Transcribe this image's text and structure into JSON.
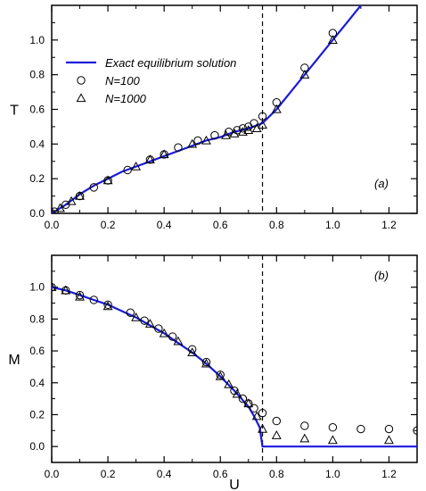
{
  "chart_data": [
    {
      "panel": "a",
      "type": "line+scatter",
      "tag": "(a)",
      "ylabel": "T",
      "xlabel": "",
      "xlim": [
        0,
        1.3
      ],
      "ylim": [
        0,
        1.2
      ],
      "xticks": [
        0.0,
        0.2,
        0.4,
        0.6,
        0.8,
        1.0,
        1.2
      ],
      "xtick_labels": [
        "0.0",
        "0.2",
        "0.4",
        "0.6",
        "0.8",
        "1.0",
        "1.2"
      ],
      "yticks": [
        0.0,
        0.2,
        0.4,
        0.6,
        0.8,
        1.0
      ],
      "ytick_labels": [
        "0.0",
        "0.2",
        "0.4",
        "0.6",
        "0.8",
        "1.0"
      ],
      "vline_x": 0.75,
      "legend": {
        "position": "upper-left",
        "entries": [
          {
            "label": "Exact equilibrium  solution",
            "marker": "line",
            "color": "#1a1adc"
          },
          {
            "label": "N=100",
            "marker": "circle",
            "color": "#000000"
          },
          {
            "label": "N=1000",
            "marker": "triangle",
            "color": "#000000"
          }
        ]
      },
      "series": [
        {
          "name": "Exact equilibrium  solution",
          "kind": "line",
          "color": "#1a1adc",
          "x": [
            0.0,
            0.05,
            0.1,
            0.15,
            0.2,
            0.25,
            0.3,
            0.35,
            0.4,
            0.45,
            0.5,
            0.55,
            0.6,
            0.65,
            0.7,
            0.75,
            0.8,
            0.85,
            0.9,
            0.95,
            1.0,
            1.05,
            1.1,
            1.13
          ],
          "values": [
            0.0,
            0.05,
            0.11,
            0.16,
            0.2,
            0.24,
            0.27,
            0.3,
            0.33,
            0.36,
            0.39,
            0.42,
            0.44,
            0.47,
            0.49,
            0.52,
            0.6,
            0.7,
            0.8,
            0.9,
            1.0,
            1.1,
            1.2,
            1.26
          ]
        },
        {
          "name": "N=100",
          "kind": "scatter",
          "marker": "circle",
          "x": [
            0.0,
            0.01,
            0.05,
            0.1,
            0.15,
            0.2,
            0.27,
            0.35,
            0.4,
            0.45,
            0.52,
            0.58,
            0.63,
            0.66,
            0.68,
            0.7,
            0.72,
            0.75,
            0.8,
            0.9,
            1.0
          ],
          "values": [
            0.0,
            0.01,
            0.05,
            0.1,
            0.15,
            0.19,
            0.25,
            0.31,
            0.34,
            0.38,
            0.42,
            0.45,
            0.47,
            0.48,
            0.49,
            0.5,
            0.52,
            0.56,
            0.64,
            0.84,
            1.04
          ]
        },
        {
          "name": "N=1000",
          "kind": "scatter",
          "marker": "triangle",
          "x": [
            0.0,
            0.03,
            0.07,
            0.1,
            0.2,
            0.3,
            0.35,
            0.4,
            0.5,
            0.55,
            0.62,
            0.65,
            0.68,
            0.7,
            0.73,
            0.75,
            0.8,
            0.9,
            1.0
          ],
          "values": [
            0.0,
            0.03,
            0.07,
            0.1,
            0.19,
            0.27,
            0.31,
            0.34,
            0.4,
            0.42,
            0.45,
            0.46,
            0.47,
            0.48,
            0.49,
            0.51,
            0.6,
            0.8,
            1.0
          ]
        }
      ]
    },
    {
      "panel": "b",
      "type": "line+scatter",
      "tag": "(b)",
      "ylabel": "M",
      "xlabel": "U",
      "xlim": [
        0,
        1.3
      ],
      "ylim": [
        -0.1,
        1.2
      ],
      "xticks": [
        0.0,
        0.2,
        0.4,
        0.6,
        0.8,
        1.0,
        1.2
      ],
      "xtick_labels": [
        "0.0",
        "0.2",
        "0.4",
        "0.6",
        "0.8",
        "1.0",
        "1.2"
      ],
      "yticks": [
        0.0,
        0.2,
        0.4,
        0.6,
        0.8,
        1.0
      ],
      "ytick_labels": [
        "0.0",
        "0.2",
        "0.4",
        "0.6",
        "0.8",
        "1.0"
      ],
      "vline_x": 0.75,
      "series": [
        {
          "name": "Exact equilibrium  solution",
          "kind": "line",
          "color": "#1a1adc",
          "x": [
            0.0,
            0.05,
            0.1,
            0.15,
            0.2,
            0.25,
            0.3,
            0.35,
            0.4,
            0.45,
            0.5,
            0.55,
            0.6,
            0.65,
            0.7,
            0.72,
            0.74,
            0.75,
            0.75,
            1.3
          ],
          "values": [
            1.0,
            0.98,
            0.95,
            0.92,
            0.89,
            0.85,
            0.81,
            0.76,
            0.71,
            0.65,
            0.59,
            0.52,
            0.44,
            0.35,
            0.25,
            0.19,
            0.12,
            0.0,
            0.0,
            0.0
          ]
        },
        {
          "name": "N=100",
          "kind": "scatter",
          "marker": "circle",
          "x": [
            0.0,
            0.05,
            0.1,
            0.15,
            0.2,
            0.28,
            0.33,
            0.38,
            0.43,
            0.5,
            0.55,
            0.6,
            0.65,
            0.68,
            0.7,
            0.72,
            0.75,
            0.8,
            0.9,
            1.0,
            1.1,
            1.2,
            1.3
          ],
          "values": [
            1.0,
            0.98,
            0.95,
            0.92,
            0.89,
            0.84,
            0.79,
            0.74,
            0.69,
            0.61,
            0.53,
            0.45,
            0.35,
            0.3,
            0.27,
            0.24,
            0.21,
            0.16,
            0.13,
            0.12,
            0.11,
            0.11,
            0.1
          ]
        },
        {
          "name": "N=1000",
          "kind": "scatter",
          "marker": "triangle",
          "x": [
            0.0,
            0.05,
            0.1,
            0.2,
            0.3,
            0.35,
            0.4,
            0.45,
            0.5,
            0.55,
            0.6,
            0.63,
            0.66,
            0.7,
            0.73,
            0.75,
            0.8,
            0.9,
            1.0,
            1.2
          ],
          "values": [
            1.0,
            0.98,
            0.94,
            0.88,
            0.81,
            0.77,
            0.71,
            0.66,
            0.59,
            0.52,
            0.44,
            0.39,
            0.33,
            0.27,
            0.19,
            0.11,
            0.07,
            0.05,
            0.04,
            0.04
          ]
        }
      ]
    }
  ]
}
